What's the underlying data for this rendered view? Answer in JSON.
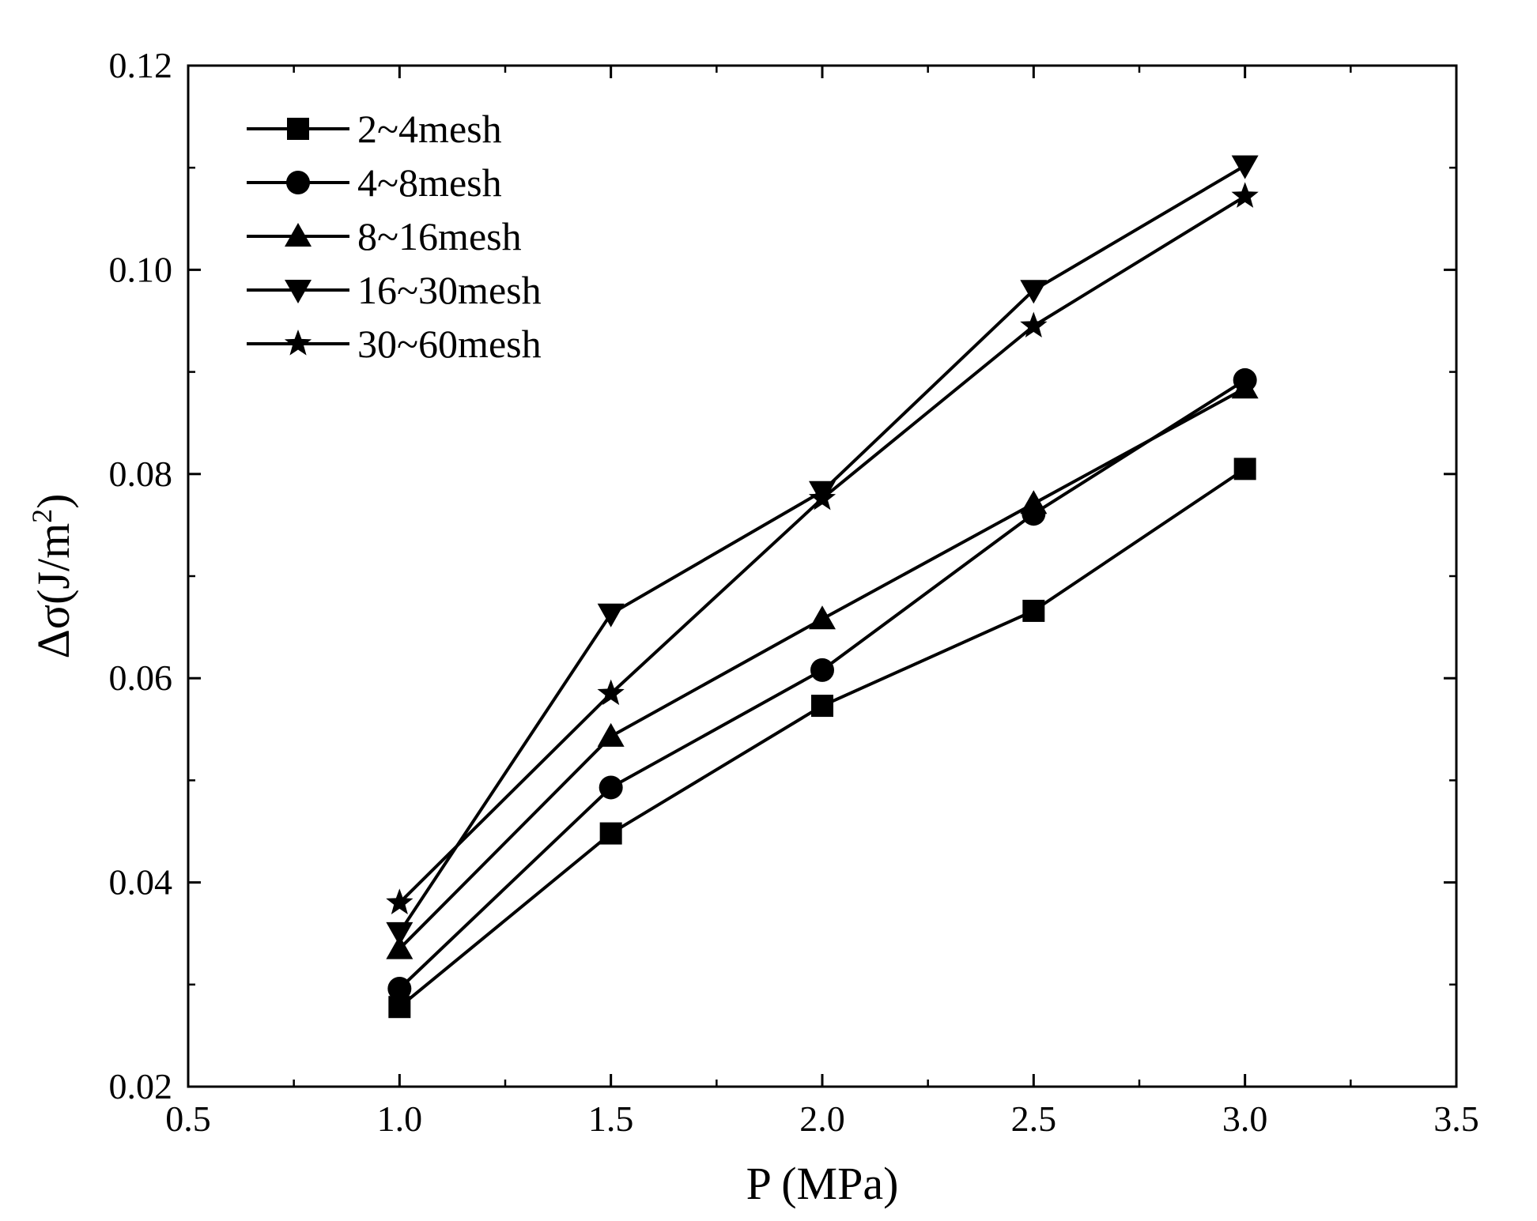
{
  "chart_data": {
    "type": "line",
    "title": "",
    "xlabel": "P (MPa)",
    "ylabel_main": "Δσ(J/m",
    "ylabel_sup": "2",
    "ylabel_close": ")",
    "ylabel": "Δσ(J/m2)",
    "xlim": [
      0.5,
      3.5
    ],
    "ylim": [
      0.02,
      0.12
    ],
    "xticks": [
      0.5,
      1.0,
      1.5,
      2.0,
      2.5,
      3.0,
      3.5
    ],
    "xtick_labels": [
      "0.5",
      "1.0",
      "1.5",
      "2.0",
      "2.5",
      "3.0",
      "3.5"
    ],
    "yticks": [
      0.02,
      0.04,
      0.06,
      0.08,
      0.1,
      0.12
    ],
    "ytick_labels": [
      "0.02",
      "0.04",
      "0.06",
      "0.08",
      "0.10",
      "0.12"
    ],
    "grid": false,
    "legend_position": "top-left",
    "x": [
      1.0,
      1.5,
      2.0,
      2.5,
      3.0
    ],
    "series": [
      {
        "name": "2~4mesh",
        "marker": "square",
        "values": [
          0.0278,
          0.0448,
          0.0573,
          0.0666,
          0.0805
        ]
      },
      {
        "name": "4~8mesh",
        "marker": "circle",
        "values": [
          0.0296,
          0.0493,
          0.0608,
          0.0761,
          0.0892
        ]
      },
      {
        "name": "8~16mesh",
        "marker": "triangle-up",
        "values": [
          0.0335,
          0.0543,
          0.0658,
          0.0771,
          0.0884
        ]
      },
      {
        "name": "16~30mesh",
        "marker": "triangle-down",
        "values": [
          0.0351,
          0.0663,
          0.0783,
          0.098,
          0.1102
        ]
      },
      {
        "name": "30~60mesh",
        "marker": "star",
        "values": [
          0.038,
          0.0585,
          0.0776,
          0.0945,
          0.1072
        ]
      }
    ]
  }
}
